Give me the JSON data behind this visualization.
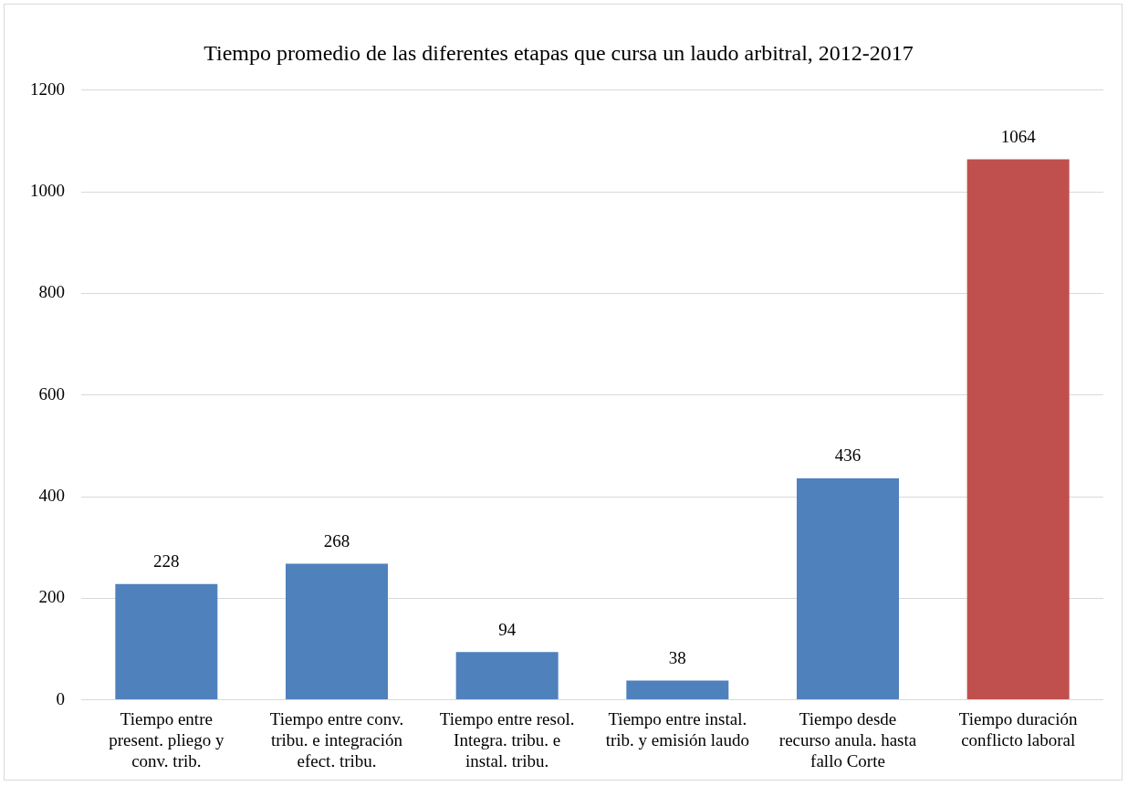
{
  "chart_data": {
    "type": "bar",
    "title": "Tiempo promedio de las diferentes etapas que cursa un laudo arbitral, 2012-2017",
    "categories": [
      "Tiempo entre present. pliego y conv. trib.",
      "Tiempo entre conv. tribu. e integración efect. tribu.",
      "Tiempo entre resol. Integra. tribu. e instal. tribu.",
      "Tiempo entre instal. trib. y emisión laudo",
      "Tiempo desde recurso anula. hasta fallo Corte",
      "Tiempo duración conflicto laboral"
    ],
    "values": [
      228,
      268,
      94,
      38,
      436,
      1064
    ],
    "colors": [
      "#4f81bd",
      "#4f81bd",
      "#4f81bd",
      "#4f81bd",
      "#4f81bd",
      "#c0504d"
    ],
    "ylim": [
      0,
      1200
    ],
    "yticks": [
      0,
      200,
      400,
      600,
      800,
      1000,
      1200
    ],
    "grid": "y",
    "data_labels": true,
    "legend": false
  }
}
